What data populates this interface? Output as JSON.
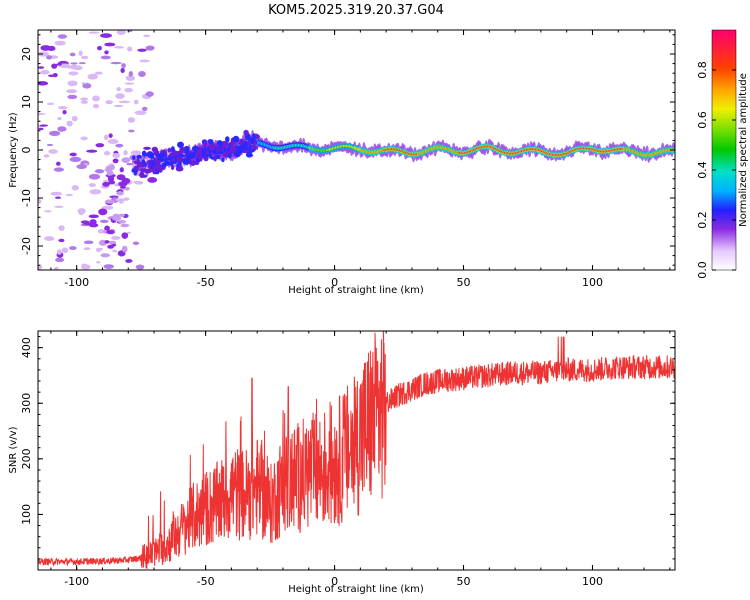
{
  "title": "KOM5.2025.319.20.37.G04",
  "chart_data": [
    {
      "type": "heatmap",
      "title": "KOM5.2025.319.20.37.G04",
      "xlabel": "Height of straight line (km)",
      "ylabel": "Frequency (Hz)",
      "xlim": [
        -115,
        132
      ],
      "ylim": [
        -25,
        25
      ],
      "x_ticks": [
        -100,
        -50,
        0,
        50,
        100
      ],
      "y_ticks": [
        -20,
        -10,
        0,
        10,
        20
      ],
      "colorbar": {
        "label": "Normalized spectral amplitude",
        "range": [
          0,
          0.96
        ],
        "ticks": [
          0.0,
          0.2,
          0.4,
          0.6,
          0.8
        ],
        "tick_labels": [
          "0.0",
          "0.2",
          "0.4",
          "0.6",
          "0.8"
        ]
      },
      "ridge": {
        "description": "dominant frequency band (approx. center frequency, Hz) vs height (km)",
        "x": [
          -78,
          -70,
          -60,
          -50,
          -40,
          -30,
          -20,
          -10,
          0,
          10,
          20,
          30,
          40,
          50,
          60,
          70,
          80,
          90,
          100,
          110,
          120,
          132
        ],
        "y": [
          -3.5,
          -2.5,
          -1.5,
          -0.5,
          0.5,
          1.2,
          0.8,
          0.3,
          0.4,
          0.2,
          -0.3,
          -0.5,
          0.1,
          -0.2,
          0.3,
          -0.4,
          -0.3,
          -0.8,
          0.4,
          -0.2,
          -0.6,
          -0.5
        ],
        "peak_amplitude": [
          0.2,
          0.25,
          0.3,
          0.35,
          0.4,
          0.45,
          0.55,
          0.6,
          0.7,
          0.75,
          0.85,
          0.85,
          0.8,
          0.85,
          0.9,
          0.85,
          0.9,
          0.85,
          0.9,
          0.85,
          0.8,
          0.75
        ]
      }
    },
    {
      "type": "line",
      "xlabel": "Height of straight line (km)",
      "ylabel": "SNR (v/v)",
      "xlim": [
        -115,
        132
      ],
      "ylim": [
        0,
        430
      ],
      "x_ticks": [
        -100,
        -50,
        0,
        50,
        100
      ],
      "y_ticks": [
        100,
        200,
        300,
        400
      ],
      "color": "#ee3333",
      "series": [
        {
          "name": "SNR",
          "x": [
            -115,
            -100,
            -90,
            -80,
            -75,
            -70,
            -65,
            -60,
            -55,
            -50,
            -45,
            -40,
            -35,
            -30,
            -25,
            -20,
            -15,
            -10,
            -5,
            0,
            5,
            10,
            15,
            20,
            25,
            30,
            35,
            40,
            50,
            60,
            70,
            80,
            90,
            100,
            110,
            120,
            132
          ],
          "y": [
            15,
            15,
            16,
            18,
            22,
            30,
            45,
            70,
            95,
            110,
            120,
            140,
            135,
            150,
            115,
            155,
            165,
            175,
            180,
            190,
            210,
            240,
            270,
            300,
            315,
            325,
            335,
            340,
            345,
            350,
            355,
            355,
            360,
            360,
            365,
            365,
            365
          ]
        }
      ],
      "annotations": [
        "noise spikes near -32 km (~345) and -18 km (~330)"
      ]
    }
  ]
}
